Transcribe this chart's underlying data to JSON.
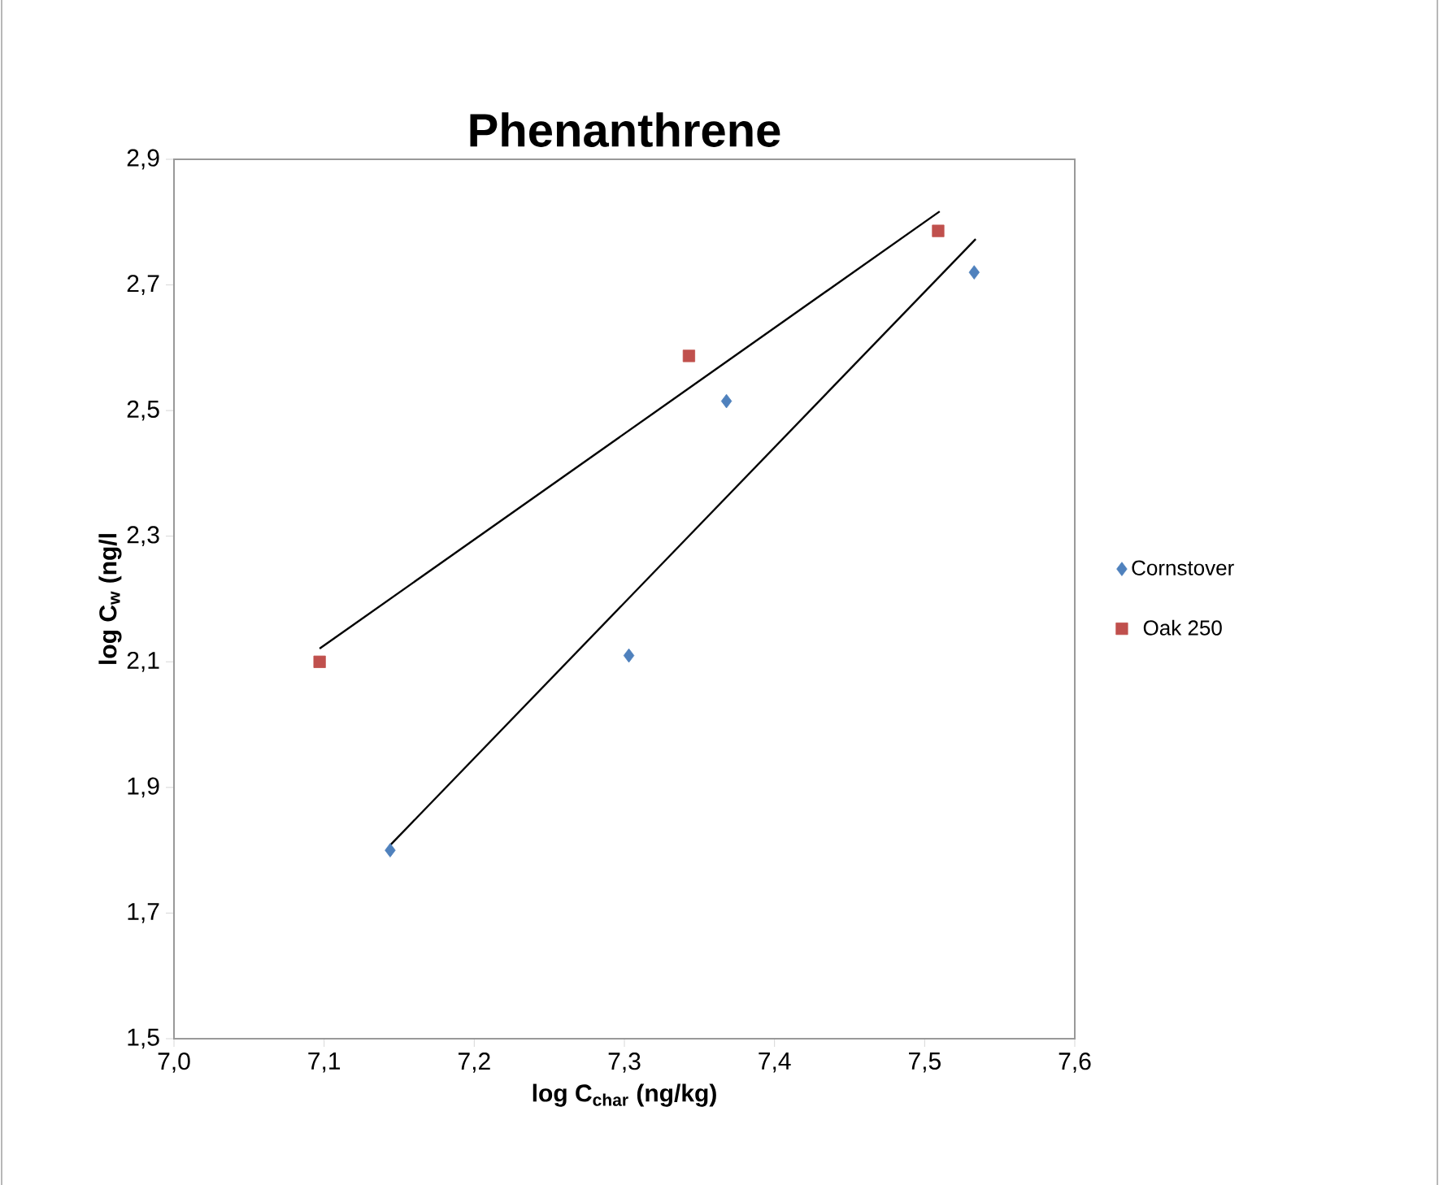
{
  "chart_data": {
    "type": "scatter",
    "title": "Phenanthrene",
    "xlabel": "log C$_{char}$ (ng/kg)",
    "ylabel": "log C$_{w}$ (ng/l",
    "xlim": [
      7.0,
      7.6
    ],
    "ylim": [
      1.5,
      2.9
    ],
    "xticks": [
      {
        "value": 7.0,
        "label": "7,0"
      },
      {
        "value": 7.1,
        "label": "7,1"
      },
      {
        "value": 7.2,
        "label": "7,2"
      },
      {
        "value": 7.3,
        "label": "7,3"
      },
      {
        "value": 7.4,
        "label": "7,4"
      },
      {
        "value": 7.5,
        "label": "7,5"
      },
      {
        "value": 7.6,
        "label": "7,6"
      }
    ],
    "yticks": [
      {
        "value": 1.5,
        "label": "1,5"
      },
      {
        "value": 1.7,
        "label": "1,7"
      },
      {
        "value": 1.9,
        "label": "1,9"
      },
      {
        "value": 2.1,
        "label": "2,1"
      },
      {
        "value": 2.3,
        "label": "2,3"
      },
      {
        "value": 2.5,
        "label": "2,5"
      },
      {
        "value": 2.7,
        "label": "2,7"
      },
      {
        "value": 2.9,
        "label": "2,9"
      }
    ],
    "grid": false,
    "legend": "right",
    "series": [
      {
        "name": "Cornstover",
        "color": "#4f81bd",
        "marker": "diamond",
        "x": [
          7.144,
          7.303,
          7.368,
          7.533
        ],
        "values": [
          1.8,
          2.11,
          2.515,
          2.72
        ]
      },
      {
        "name": "Oak 250",
        "color": "#c0504d",
        "marker": "square",
        "x": [
          7.097,
          7.343,
          7.509
        ],
        "values": [
          2.1,
          2.587,
          2.786
        ]
      },
      {
        "type": "line",
        "color": "#000000",
        "marker": "none",
        "x": [
          7.144,
          7.534
        ],
        "values": [
          1.808,
          2.773
        ]
      },
      {
        "type": "line",
        "color": "#000000",
        "marker": "none",
        "x": [
          7.097,
          7.51
        ],
        "values": [
          2.121,
          2.817
        ]
      }
    ]
  }
}
